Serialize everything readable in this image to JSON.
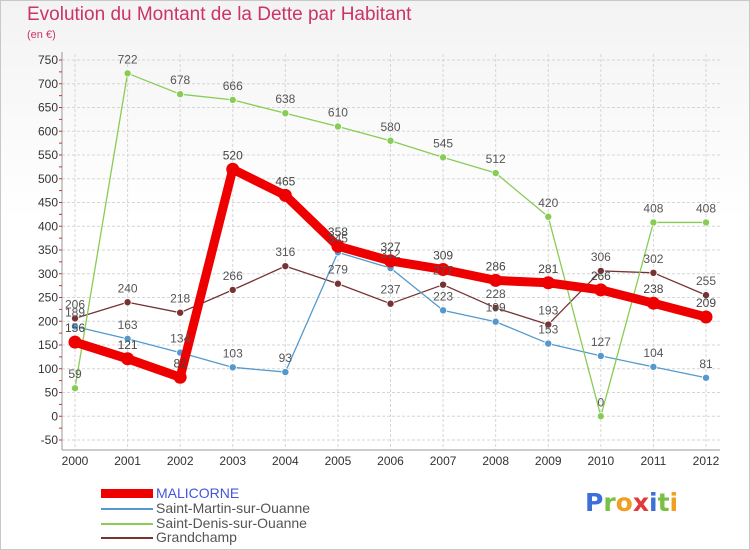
{
  "header": {
    "title": "Evolution du Montant de la Dette par Habitant",
    "subtitle": "(en €)"
  },
  "logo": {
    "text": "Proxiti",
    "letters": [
      {
        "char": "P",
        "color": "#3d6fd9"
      },
      {
        "char": "r",
        "color": "#7ac143"
      },
      {
        "char": "o",
        "color": "#f0a020"
      },
      {
        "char": "x",
        "color": "#e03a3a"
      },
      {
        "char": "i",
        "color": "#3d6fd9"
      },
      {
        "char": "t",
        "color": "#7ac143"
      },
      {
        "char": "i",
        "color": "#f0a020"
      }
    ]
  },
  "chart_data": {
    "type": "line",
    "title": "Evolution du Montant de la Dette par Habitant",
    "subtitle": "(en €)",
    "xlabel": "",
    "ylabel": "",
    "ylim": [
      -50,
      750
    ],
    "yticks": [
      -50,
      0,
      50,
      100,
      150,
      200,
      250,
      300,
      350,
      400,
      450,
      500,
      550,
      600,
      650,
      700,
      750
    ],
    "x": [
      "2000",
      "2001",
      "2002",
      "2003",
      "2004",
      "2005",
      "2006",
      "2007",
      "2008",
      "2009",
      "2010",
      "2011",
      "2012"
    ],
    "grid": true,
    "legend_position": "bottom-left",
    "series": [
      {
        "name": "MALICORNE",
        "color": "#ee0000",
        "label_color": "#444444",
        "values": [
          156,
          121,
          82,
          520,
          465,
          358,
          327,
          309,
          286,
          281,
          266,
          238,
          209
        ],
        "labels": [
          "156",
          "121",
          "82",
          "520",
          "465",
          "358",
          "327",
          "309",
          "286",
          "281",
          "266",
          "238",
          "209"
        ]
      },
      {
        "name": "Saint-Martin-sur-Ouanne",
        "color": "#5599cc",
        "label_color": "#555555",
        "values": [
          189,
          163,
          134,
          103,
          93,
          345,
          312,
          223,
          199,
          153,
          127,
          104,
          81
        ],
        "labels": [
          "189",
          "163",
          "134",
          "103",
          "93",
          "345",
          "312",
          "223",
          "199",
          "153",
          "127",
          "104",
          "81"
        ]
      },
      {
        "name": "Saint-Denis-sur-Ouanne",
        "color": "#88cc55",
        "label_color": "#555555",
        "values": [
          59,
          722,
          678,
          666,
          638,
          610,
          580,
          545,
          512,
          420,
          0,
          408,
          408
        ],
        "labels": [
          "59",
          "722",
          "678",
          "666",
          "638",
          "610",
          "580",
          "545",
          "512",
          "420",
          "0",
          "408",
          "408"
        ]
      },
      {
        "name": "Grandchamp",
        "color": "#773333",
        "label_color": "#555555",
        "values": [
          206,
          240,
          218,
          266,
          316,
          279,
          237,
          277,
          228,
          193,
          306,
          302,
          255
        ],
        "labels": [
          "206",
          "240",
          "218",
          "266",
          "316",
          "279",
          "237",
          "277",
          "228",
          "193",
          "306",
          "302",
          "255"
        ]
      }
    ]
  }
}
